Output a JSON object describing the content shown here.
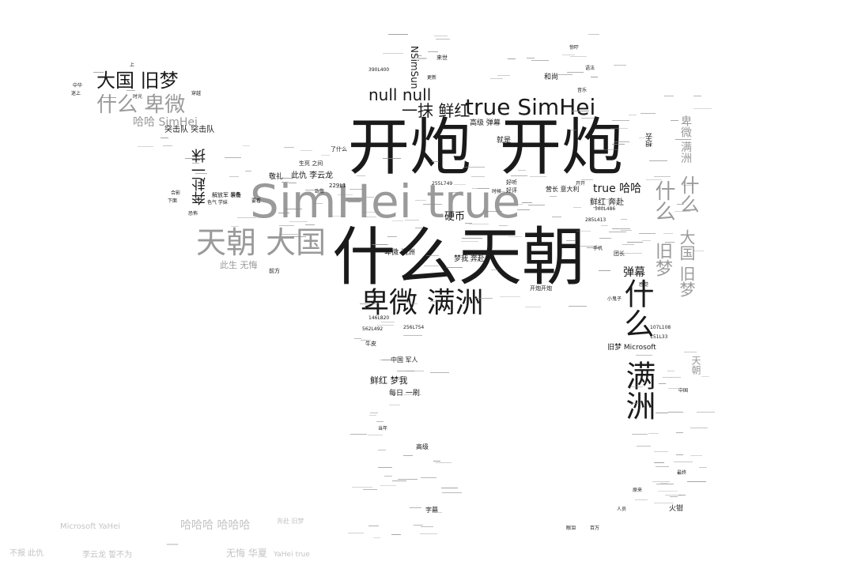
{
  "colors": {
    "background": "#ffffff",
    "dark": "#1a1a1a",
    "gray": "#9a9a9a",
    "light": "#c4c4c4"
  },
  "words": {
    "kaipao": "开炮",
    "shenme_tianchao": "什么天朝",
    "simhei_true": "SimHei true",
    "beiwei_manzhou": "卑微 满洲",
    "tianchao_daguo": "天朝 大国",
    "daguo_jiumeng": "大国 旧梦",
    "shenme_beiwei": "什么 卑微",
    "true_simhei": "true SimHei",
    "null_null": "null null",
    "yimo_xianhong": "一抹 鲜红",
    "haha_simhei": "哈哈 SimHei",
    "tujidui": "突击队 突击队",
    "benfu": "奔赴",
    "yimo": "一抹",
    "ciqiu_liyunlong": "此仇 李云龙",
    "cisheng_wuhui": "此生 无悔",
    "yinghu": "硬币",
    "beiwei_manzhou_small": "卑微 满洲",
    "mengwo_benfu": "梦我 奔赴",
    "true_haha": "true 哈哈",
    "xianhong_benfu": "鲜红 奔赴",
    "danmu": "弹幕",
    "shenme_r": "什么",
    "manzhou_r": "满洲",
    "shenme_gray_r": "什么",
    "jiumeng_r": "旧梦",
    "shenme_r2": "什么",
    "daguo_r": "大国",
    "jiumeng_r2": "旧梦",
    "jiumeng_microsoft": "旧梦 Microsoft",
    "gaoji_danmu": "高级 弹幕",
    "jiushi": "就是",
    "heshang": "和尚",
    "xianhong_mengwo": "鲜红 梦我",
    "meiri_yishua": "每日 一刷",
    "zhongguo_junren": "中国 军人",
    "niupi": "牛皮",
    "gaoji": "高级",
    "zimu": "字幕",
    "huoqian": "火钳",
    "jiefangjun_zhuangbei": "解放军 装备",
    "qianfang": "前方",
    "jingli": "敬礼",
    "shengsi_zhijian": "生死 之间",
    "leshenme": "了什么",
    "yingzhang_yidali": "营长 意大利",
    "xiaoxiaozi": "小鬼子",
    "tuanzhang": "团长",
    "ganjue": "感觉",
    "tianchao": "天朝",
    "ganjue2": "感觉",
    "shouji": "手机",
    "kaipao_kaipao": "开炮开炮",
    "haoting": "好听",
    "haoping": "好评",
    "shijian": "时候",
    "nsimsun": "NSimSun",
    "laishi": "来世",
    "genxin": "更新",
    "id_3": "390L400",
    "id_4": "255L749",
    "id_5": "229L1",
    "id_6": "560L486",
    "id_7": "285L413",
    "id_8": "146L820",
    "id_9": "256L754",
    "id_10": "562L492",
    "id_11": "107L108",
    "id_12": "151L33",
    "zhongguo_s": "中国",
    "yanjing": "眼泪",
    "baiwan": "百万",
    "renyuan": "人员",
    "microsoft_yahei": "Microsoft YaHei",
    "hahaha": "哈哈哈 哈哈哈",
    "benfu_jiumeng": "奔赴 旧梦",
    "yi_line": "一",
    "wuhui_huaxia": "无悔 华夏",
    "yahei_true": "YaHei true",
    "bubao_ciqiu": "不报 此仇",
    "liyunlong_wangbu": "李云龙 誓不为",
    "shangdan": "上",
    "chuanyue": "穿越",
    "zhongzhong": "中华",
    "zhongzhong2": "迷上",
    "shiguang": "时光",
    "kongbu": "恐怖",
    "sese_xuezhang": "色气 学妹",
    "huiqian": "合影",
    "xiamian": "下面",
    "yaokan": "要看",
    "zhudao": "致敬",
    "zhuangbei_s": "装备",
    "zuizhong": "最终",
    "dangan_yiming": "当年",
    "yuanlai": "原来",
    "kaikai": "开开",
    "jiangwai": "惊吓",
    "yufu": "语法",
    "yinfu": "音乐",
    "xiangqu": "想去"
  }
}
